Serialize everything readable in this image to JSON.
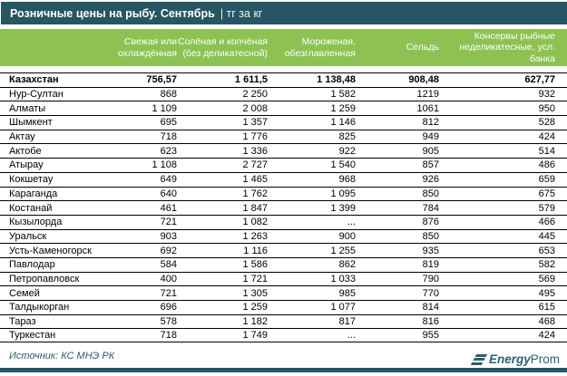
{
  "title_bar": {
    "title": "Розничные цены на рыбу. Сентябрь",
    "unit": "| тг за кг"
  },
  "colors": {
    "teal": "#265563",
    "green": "#8DC152",
    "logo_teal": "#2B6173",
    "row_border": "#000000"
  },
  "chart_data": {
    "type": "table",
    "title": "Розничные цены на рыбу. Сентябрь (тг за кг)",
    "columns": [
      "Свежая или охлаждённая",
      "Солёная и копчёная (без деликатесной)",
      "Мороженая, обезглавленная",
      "Сельдь",
      "Консервы рыбные неделикатесные, усл. банка"
    ],
    "rows": [
      {
        "name": "Казахстан",
        "bold": true,
        "values": [
          "756,57",
          "1 611,5",
          "1 138,48",
          "908,48",
          "627,77"
        ]
      },
      {
        "name": "Нур-Султан",
        "values": [
          "868",
          "2 250",
          "1 582",
          "1219",
          "932"
        ]
      },
      {
        "name": "Алматы",
        "values": [
          "1 109",
          "2 008",
          "1 259",
          "1061",
          "950"
        ]
      },
      {
        "name": "Шымкент",
        "values": [
          "695",
          "1 357",
          "1 146",
          "812",
          "528"
        ]
      },
      {
        "name": "Актау",
        "values": [
          "718",
          "1 776",
          "825",
          "949",
          "424"
        ]
      },
      {
        "name": "Актобе",
        "values": [
          "623",
          "1 336",
          "922",
          "905",
          "514"
        ]
      },
      {
        "name": "Атырау",
        "values": [
          "1 108",
          "2 727",
          "1 540",
          "857",
          "486"
        ]
      },
      {
        "name": "Кокшетау",
        "values": [
          "649",
          "1 465",
          "968",
          "926",
          "659"
        ]
      },
      {
        "name": "Караганда",
        "values": [
          "640",
          "1 762",
          "1 095",
          "850",
          "675"
        ]
      },
      {
        "name": "Костанай",
        "values": [
          "461",
          "1 847",
          "1 399",
          "784",
          "579"
        ]
      },
      {
        "name": "Кызылорда",
        "values": [
          "721",
          "1 082",
          "...",
          "876",
          "466"
        ]
      },
      {
        "name": "Уральск",
        "values": [
          "903",
          "1 263",
          "900",
          "850",
          "445"
        ]
      },
      {
        "name": "Усть-Каменогорск",
        "values": [
          "692",
          "1 116",
          "1 255",
          "935",
          "653"
        ]
      },
      {
        "name": "Павлодар",
        "values": [
          "584",
          "1 586",
          "862",
          "819",
          "582"
        ]
      },
      {
        "name": "Петропавловск",
        "values": [
          "400",
          "1 721",
          "1 033",
          "790",
          "569"
        ]
      },
      {
        "name": "Семей",
        "values": [
          "721",
          "1 305",
          "985",
          "770",
          "495"
        ]
      },
      {
        "name": "Талдыкорган",
        "values": [
          "696",
          "1 259",
          "1 077",
          "814",
          "615"
        ]
      },
      {
        "name": "Тараз",
        "values": [
          "578",
          "1 182",
          "817",
          "816",
          "468"
        ]
      },
      {
        "name": "Туркестан",
        "values": [
          "718",
          "1 749",
          "...",
          "955",
          "424"
        ]
      }
    ]
  },
  "footer": {
    "source": "Источник: КС МНЭ РК",
    "logo_energy": "Energy",
    "logo_prom": "Prom"
  }
}
